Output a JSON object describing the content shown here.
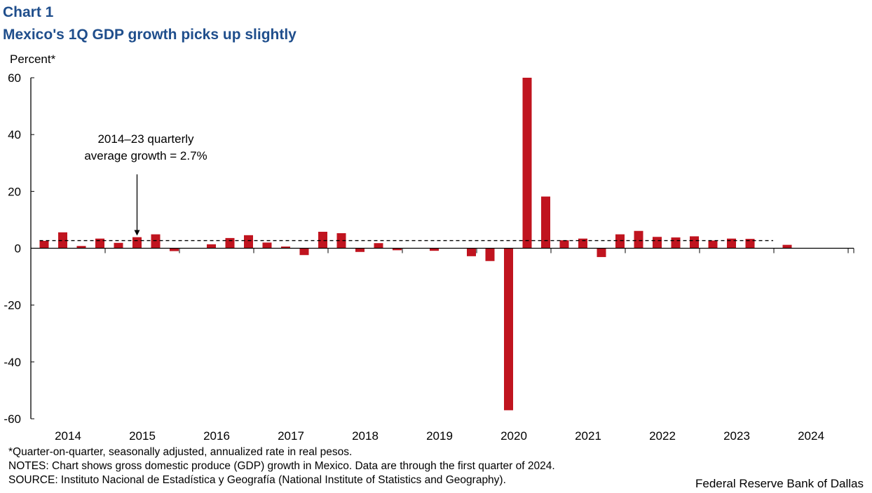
{
  "header": {
    "chart_number": "Chart 1",
    "title": "Mexico's 1Q GDP growth picks up slightly"
  },
  "chart_data": {
    "type": "bar",
    "title": "Mexico's 1Q GDP growth picks up slightly",
    "ylabel": "Percent*",
    "xlabel": "",
    "ylim": [
      -60,
      60
    ],
    "yticks": [
      60,
      40,
      20,
      0,
      -20,
      -40,
      -60
    ],
    "year_labels": [
      "2014",
      "2015",
      "2016",
      "2017",
      "2018",
      "2019",
      "2020",
      "2021",
      "2022",
      "2023",
      "2024"
    ],
    "categories": [
      "2014Q1",
      "2014Q2",
      "2014Q3",
      "2014Q4",
      "2015Q1",
      "2015Q2",
      "2015Q3",
      "2015Q4",
      "2016Q1",
      "2016Q2",
      "2016Q3",
      "2016Q4",
      "2017Q1",
      "2017Q2",
      "2017Q3",
      "2017Q4",
      "2018Q1",
      "2018Q2",
      "2018Q3",
      "2018Q4",
      "2019Q1",
      "2019Q2",
      "2019Q3",
      "2019Q4",
      "2020Q1",
      "2020Q2",
      "2020Q3",
      "2020Q4",
      "2021Q1",
      "2021Q2",
      "2021Q3",
      "2021Q4",
      "2022Q1",
      "2022Q2",
      "2022Q3",
      "2022Q4",
      "2023Q1",
      "2023Q2",
      "2023Q3",
      "2023Q4",
      "2024Q1"
    ],
    "series": [
      {
        "name": "GDP growth",
        "color": "#c0141f",
        "values": [
          2.6,
          5.6,
          0.8,
          3.4,
          1.9,
          3.9,
          4.9,
          -1.0,
          0.1,
          1.4,
          3.6,
          4.6,
          2.0,
          0.6,
          -2.4,
          5.8,
          5.3,
          -1.3,
          1.8,
          -0.7,
          0.0,
          -0.9,
          0.1,
          -2.8,
          -4.5,
          -57.0,
          60.0,
          18.2,
          2.8,
          3.4,
          -3.1,
          4.9,
          6.1,
          4.0,
          3.8,
          4.2,
          2.7,
          3.4,
          3.3,
          0.1,
          1.2
        ]
      }
    ],
    "reference_line": {
      "value": 2.7,
      "style": "dashed"
    },
    "annotation": {
      "line1": "2014–23 quarterly",
      "line2": "average growth = 2.7%",
      "points_to": "2015Q2"
    }
  },
  "notes": {
    "footnote": "*Quarter-on-quarter, seasonally adjusted, annualized rate in real pesos.",
    "notes": "NOTES: Chart shows gross domestic produce (GDP) growth in Mexico. Data are through the first quarter of 2024.",
    "source": "SOURCE: Instituto Nacional de Estadística y Geografía (National Institute of Statistics and Geography)."
  },
  "credit": "Federal Reserve Bank of Dallas"
}
